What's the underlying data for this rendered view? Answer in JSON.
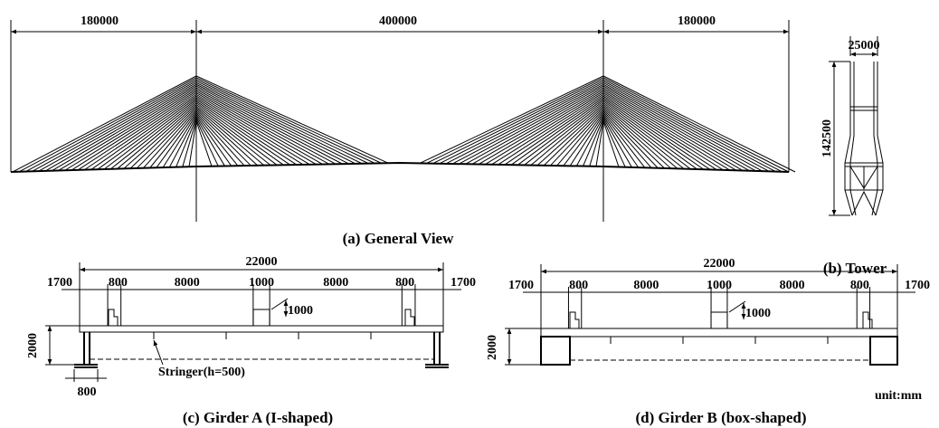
{
  "general_view": {
    "dimensions": [
      "180000",
      "400000",
      "180000"
    ],
    "caption": "(a) General View"
  },
  "tower": {
    "width": "25000",
    "height": "142500",
    "caption": "(b) Tower"
  },
  "girder_a": {
    "total_width": "22000",
    "dimensions": [
      "1700",
      "800",
      "8000",
      "1000",
      "8000",
      "800",
      "1700"
    ],
    "curb_height": "1000",
    "depth": "2000",
    "flange_width": "800",
    "stringer": "Stringer(h=500)",
    "caption": "(c) Girder A (I-shaped)"
  },
  "girder_b": {
    "total_width": "22000",
    "dimensions": [
      "1700",
      "800",
      "8000",
      "1000",
      "8000",
      "800",
      "1700"
    ],
    "curb_height": "1000",
    "depth": "2000",
    "caption": "(d) Girder B (box-shaped)"
  },
  "unit": "unit:mm"
}
